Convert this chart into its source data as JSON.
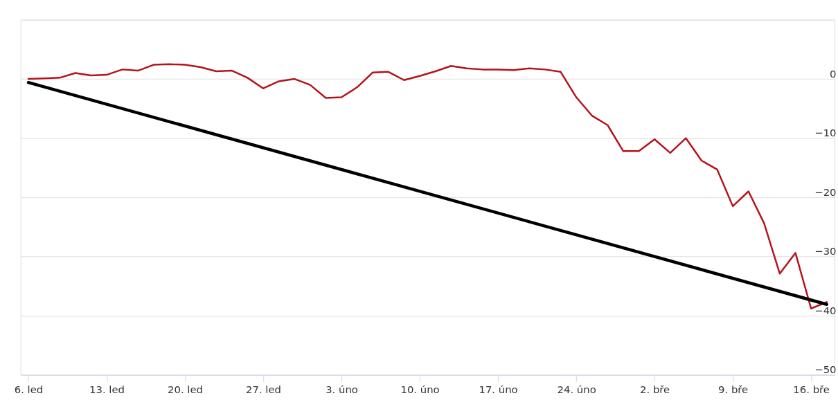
{
  "chart_data": {
    "type": "line",
    "categories": [
      "6. led",
      null,
      null,
      null,
      null,
      "13. led",
      null,
      null,
      null,
      null,
      "20. led",
      null,
      null,
      null,
      null,
      "27. led",
      null,
      null,
      null,
      null,
      "3. úno",
      null,
      null,
      null,
      null,
      "10. úno",
      null,
      null,
      null,
      null,
      "17. úno",
      null,
      null,
      null,
      null,
      "24. úno",
      null,
      null,
      null,
      null,
      "2. bře",
      null,
      null,
      null,
      null,
      "9. bře",
      null,
      null,
      null,
      null,
      "16. bře",
      null
    ],
    "series": [
      {
        "color": "#b5121b",
        "values": [
          0,
          0.1,
          0.2,
          1.0,
          0.6,
          0.7,
          1.6,
          1.4,
          2.4,
          2.5,
          2.4,
          2.0,
          1.3,
          1.4,
          0.2,
          -1.6,
          -0.4,
          0.0,
          -1.0,
          -3.2,
          -3.1,
          -1.4,
          1.1,
          1.2,
          -0.2,
          0.5,
          1.3,
          2.2,
          1.8,
          1.6,
          1.6,
          1.5,
          1.8,
          1.6,
          1.2,
          -3.1,
          -6.2,
          -7.8,
          -12.2,
          -12.2,
          -10.2,
          -12.5,
          -10.0,
          -13.8,
          -15.3,
          -21.5,
          -19.0,
          -24.4,
          -32.9,
          -29.4,
          -38.8,
          -37.7
        ]
      },
      {
        "type": "line",
        "color": "#000000",
        "values": [
          -0.6,
          null,
          null,
          null,
          null,
          null,
          null,
          null,
          null,
          null,
          null,
          null,
          null,
          null,
          null,
          null,
          null,
          null,
          null,
          null,
          null,
          null,
          null,
          null,
          null,
          null,
          null,
          null,
          null,
          null,
          null,
          null,
          null,
          null,
          null,
          null,
          null,
          null,
          null,
          null,
          null,
          null,
          null,
          null,
          null,
          null,
          null,
          null,
          null,
          null,
          null,
          -38.1
        ]
      }
    ],
    "ylim": [
      -50,
      10
    ],
    "yticks": [
      -50,
      -40,
      -30,
      -20,
      -10,
      0,
      {
        "value": 10,
        "label": null
      }
    ],
    "grid": "y",
    "legend": false,
    "marker": "none",
    "line_style": "solid"
  }
}
